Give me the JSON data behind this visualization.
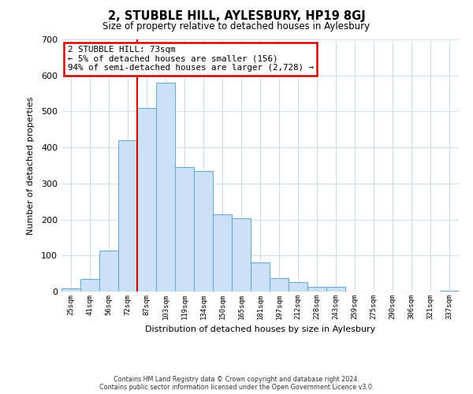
{
  "title": "2, STUBBLE HILL, AYLESBURY, HP19 8GJ",
  "subtitle": "Size of property relative to detached houses in Aylesbury",
  "xlabel": "Distribution of detached houses by size in Aylesbury",
  "ylabel": "Number of detached properties",
  "bar_labels": [
    "25sqm",
    "41sqm",
    "56sqm",
    "72sqm",
    "87sqm",
    "103sqm",
    "119sqm",
    "134sqm",
    "150sqm",
    "165sqm",
    "181sqm",
    "197sqm",
    "212sqm",
    "228sqm",
    "243sqm",
    "259sqm",
    "275sqm",
    "290sqm",
    "306sqm",
    "321sqm",
    "337sqm"
  ],
  "bar_values": [
    8,
    35,
    113,
    420,
    510,
    580,
    345,
    335,
    215,
    203,
    82,
    37,
    27,
    13,
    13,
    0,
    0,
    0,
    0,
    0,
    2
  ],
  "bar_color": "#cce0f5",
  "bar_edge_color": "#6aaad4",
  "vline_x_index": 3,
  "vline_color": "#cc0000",
  "annotation_title": "2 STUBBLE HILL: 73sqm",
  "annotation_line1": "← 5% of detached houses are smaller (156)",
  "annotation_line2": "94% of semi-detached houses are larger (2,728) →",
  "annotation_box_color": "#ffffff",
  "annotation_box_edge": "#cc0000",
  "ylim": [
    0,
    700
  ],
  "yticks": [
    0,
    100,
    200,
    300,
    400,
    500,
    600,
    700
  ],
  "footer1": "Contains HM Land Registry data © Crown copyright and database right 2024.",
  "footer2": "Contains public sector information licensed under the Open Government Licence v3.0.",
  "bg_color": "#ffffff",
  "grid_color": "#ccdff0"
}
